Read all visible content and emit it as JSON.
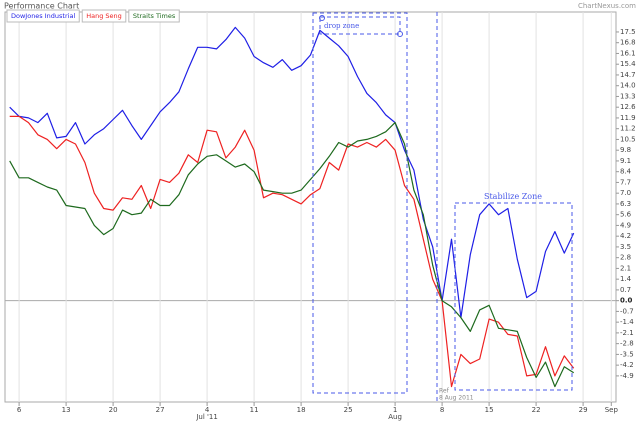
{
  "chart_data": {
    "type": "line",
    "title": "Performance Chart",
    "source": "ChartNexus.com",
    "categories": [
      null,
      "6",
      null,
      null,
      null,
      null,
      "13",
      null,
      null,
      null,
      null,
      "20",
      null,
      null,
      null,
      null,
      "27",
      null,
      null,
      null,
      null,
      "4",
      null,
      null,
      null,
      null,
      "11",
      null,
      null,
      null,
      null,
      "18",
      null,
      null,
      null,
      null,
      "25",
      null,
      null,
      null,
      null,
      "1",
      null,
      null,
      null,
      null,
      "8",
      null,
      null,
      null,
      null,
      "15",
      null,
      null,
      null,
      null,
      "22",
      null,
      null,
      null,
      null,
      "29",
      null,
      null,
      null
    ],
    "months": [
      null,
      null,
      null,
      null,
      null,
      null,
      null,
      null,
      null,
      null,
      null,
      null,
      null,
      null,
      null,
      null,
      null,
      null,
      null,
      null,
      null,
      "Jul '11",
      null,
      null,
      null,
      null,
      null,
      null,
      null,
      null,
      null,
      null,
      null,
      null,
      null,
      null,
      null,
      null,
      null,
      null,
      null,
      "Aug",
      null,
      null,
      null,
      null,
      null,
      null,
      null,
      null,
      null,
      null,
      null,
      null,
      null,
      null,
      null,
      null,
      null,
      null,
      null,
      null,
      null,
      null,
      "Sep"
    ],
    "series": [
      {
        "name": "DowJones Industrial",
        "color": "#1f1fe6",
        "values": [
          12.6,
          12.0,
          11.9,
          11.6,
          12.2,
          10.6,
          10.7,
          11.6,
          10.2,
          10.8,
          11.2,
          11.8,
          12.4,
          11.4,
          10.5,
          11.4,
          12.3,
          12.9,
          13.6,
          15.1,
          16.5,
          16.5,
          16.4,
          17.0,
          17.8,
          17.1,
          15.9,
          15.5,
          15.2,
          15.7,
          15.0,
          15.3,
          16.0,
          17.6,
          17.1,
          16.6,
          15.9,
          14.6,
          13.5,
          12.9,
          12.1,
          11.6,
          9.8,
          8.5,
          5.3,
          3.5,
          0.0,
          4.0,
          -1.1,
          3.0,
          5.6,
          6.3,
          5.6,
          6.0,
          2.7,
          0.2,
          0.6,
          3.2,
          4.5,
          3.1,
          4.4,
          null,
          null,
          null,
          null
        ]
      },
      {
        "name": "Hang Seng",
        "color": "#ee2222",
        "values": [
          12.0,
          12.0,
          11.6,
          10.8,
          10.5,
          9.9,
          10.5,
          10.2,
          9.0,
          7.0,
          6.0,
          5.9,
          6.7,
          6.6,
          7.5,
          6.0,
          7.9,
          7.7,
          8.3,
          9.5,
          9.0,
          11.1,
          11.0,
          9.3,
          10.0,
          11.1,
          9.8,
          6.7,
          7.0,
          6.9,
          6.6,
          6.3,
          6.9,
          7.3,
          9.0,
          8.5,
          10.2,
          10.0,
          10.3,
          10.0,
          10.5,
          9.8,
          7.5,
          6.6,
          4.0,
          1.4,
          0.0,
          -5.6,
          -3.5,
          -4.1,
          -3.8,
          -1.2,
          -1.4,
          -2.2,
          -2.3,
          -4.9,
          -4.8,
          -3.0,
          -4.9,
          -3.6,
          -4.4,
          null,
          null,
          null,
          null
        ]
      },
      {
        "name": "Straits Times",
        "color": "#1e6a1e",
        "values": [
          9.1,
          8.0,
          8.0,
          7.7,
          7.4,
          7.2,
          6.2,
          6.1,
          6.0,
          4.9,
          4.3,
          4.7,
          5.9,
          5.6,
          5.7,
          6.6,
          6.2,
          6.2,
          6.9,
          8.2,
          8.9,
          9.4,
          9.5,
          9.1,
          8.7,
          8.9,
          8.4,
          7.2,
          7.1,
          7.0,
          7.0,
          7.2,
          7.9,
          8.6,
          9.4,
          10.3,
          10.0,
          10.4,
          10.5,
          10.7,
          11.0,
          11.6,
          10.2,
          7.2,
          5.6,
          2.3,
          0.0,
          -0.4,
          -1.1,
          -2.0,
          -0.6,
          -0.3,
          -1.8,
          -1.9,
          -2.0,
          -3.7,
          -5.0,
          -4.0,
          -5.6,
          -4.3,
          -4.7,
          null,
          null,
          null,
          null
        ]
      }
    ],
    "ylim": [
      -6.6,
      18.8
    ],
    "yticks": [
      17.5,
      16.8,
      16.1,
      15.4,
      14.7,
      {
        "value": 14,
        "label": "14.0"
      },
      13.3,
      12.6,
      11.9,
      11.2,
      10.5,
      9.8,
      9.1,
      8.4,
      7.7,
      {
        "value": 7,
        "label": "7.0"
      },
      6.3,
      5.6,
      4.9,
      4.2,
      3.5,
      2.8,
      2.1,
      1.4,
      0.7,
      {
        "value": 0,
        "label": "0.0"
      },
      -0.7,
      -1.4,
      -2.1,
      -2.8,
      -3.5,
      -4.2,
      -4.9
    ],
    "x_grid": true,
    "legend": "top-left",
    "annotations": {
      "drop_zone": "drop zone",
      "stabilize_zone": "Stabilize Zone",
      "ref": "Ref",
      "ref_date": "8 Aug 2011"
    }
  }
}
